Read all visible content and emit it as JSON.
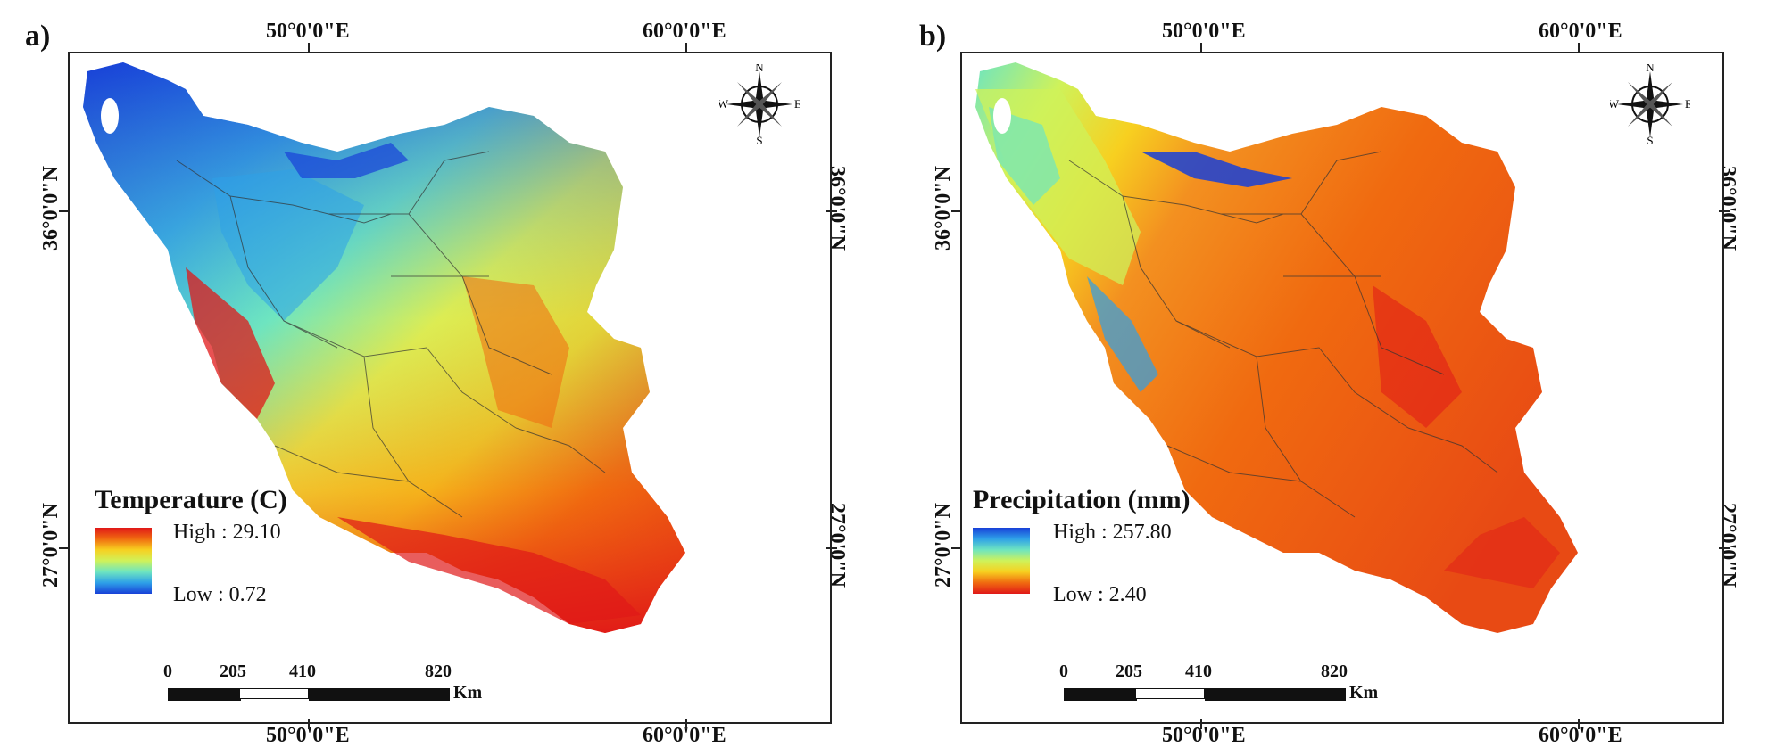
{
  "panels": [
    {
      "label": "a)",
      "legend_title": "Temperature (C)",
      "high": "High : 29.10",
      "low": "Low : 0.72",
      "ramp": [
        "#e01818",
        "#f06a10",
        "#f7d020",
        "#cff25a",
        "#6ee5c0",
        "#2ea0e8",
        "#1840d8"
      ]
    },
    {
      "label": "b)",
      "legend_title": "Precipitation (mm)",
      "high": "High : 257.80",
      "low": "Low : 2.40",
      "ramp": [
        "#1840d8",
        "#2ea0e8",
        "#6ee5c0",
        "#cff25a",
        "#f7d020",
        "#f06a10",
        "#e01818"
      ]
    }
  ],
  "axes": {
    "lon_left": "50°0'0\"E",
    "lon_right": "60°0'0\"E",
    "lat_top": "36°0'0\"N",
    "lat_bottom": "27°0'0\"N"
  },
  "scale_bar": {
    "ticks": [
      "0",
      "205",
      "410",
      "820"
    ],
    "unit": "Km"
  },
  "compass": {
    "n": "N",
    "s": "S",
    "e": "E",
    "w": "W"
  }
}
